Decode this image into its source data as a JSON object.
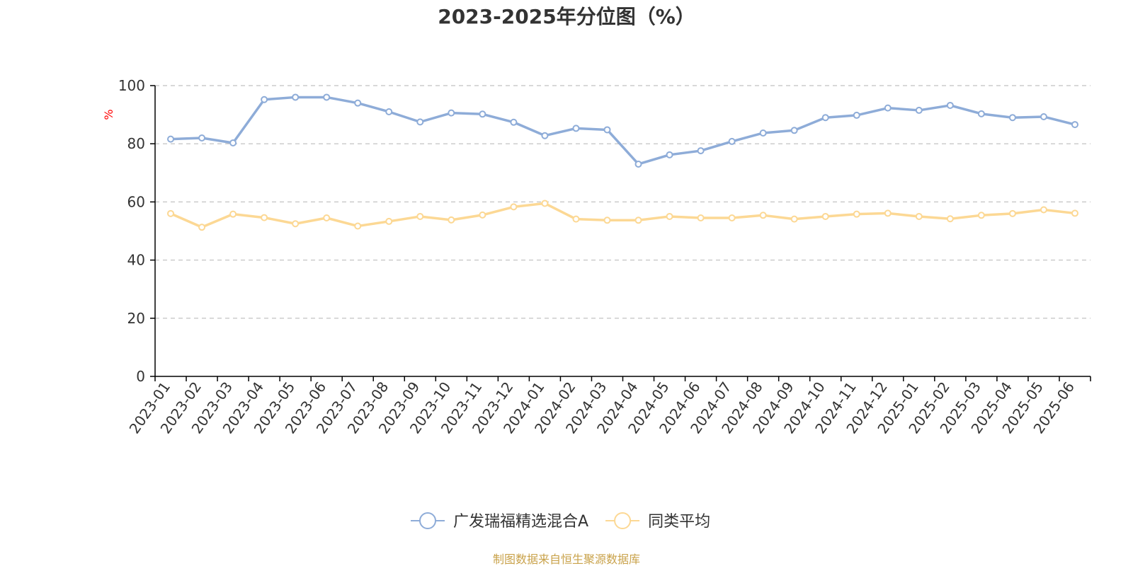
{
  "chart_data": {
    "type": "line",
    "title": "2023-2025年分位图（%）",
    "ylabel": "%",
    "ylim": [
      0,
      100
    ],
    "yticks": [
      0,
      20,
      40,
      60,
      80,
      100
    ],
    "grid": true,
    "legend_position": "bottom-center",
    "categories": [
      "2023-01",
      "2023-02",
      "2023-03",
      "2023-04",
      "2023-05",
      "2023-06",
      "2023-07",
      "2023-08",
      "2023-09",
      "2023-10",
      "2023-11",
      "2023-12",
      "2024-01",
      "2024-02",
      "2024-03",
      "2024-04",
      "2024-05",
      "2024-06",
      "2024-07",
      "2024-08",
      "2024-09",
      "2024-10",
      "2024-11",
      "2024-12",
      "2025-01",
      "2025-02",
      "2025-03",
      "2025-04",
      "2025-05",
      "2025-06"
    ],
    "series": [
      {
        "name": "广发瑞福精选混合A",
        "color": "#8eacd8",
        "values": [
          81.6,
          82.0,
          80.3,
          95.2,
          96.0,
          96.0,
          94.0,
          91.0,
          87.5,
          90.6,
          90.2,
          87.4,
          82.8,
          85.3,
          84.8,
          73.0,
          76.2,
          77.6,
          80.8,
          83.7,
          84.6,
          89.0,
          89.8,
          92.3,
          91.5,
          93.2,
          90.3,
          89.0,
          89.3,
          86.6
        ]
      },
      {
        "name": "同类平均",
        "color": "#fcd894",
        "values": [
          56.0,
          51.3,
          55.8,
          54.6,
          52.5,
          54.5,
          51.7,
          53.3,
          55.0,
          53.8,
          55.5,
          58.3,
          59.5,
          54.1,
          53.7,
          53.7,
          55.0,
          54.5,
          54.5,
          55.4,
          54.1,
          55.0,
          55.8,
          56.1,
          55.0,
          54.2,
          55.4,
          56.0,
          57.3,
          56.1
        ]
      }
    ]
  },
  "source": {
    "text": "制图数据来自恒生聚源数据库",
    "color": "#c9a24a"
  },
  "colors": {
    "axis": "#000000",
    "grid": "#cccccc",
    "text": "#333333",
    "ylabel": "#ff0000"
  }
}
